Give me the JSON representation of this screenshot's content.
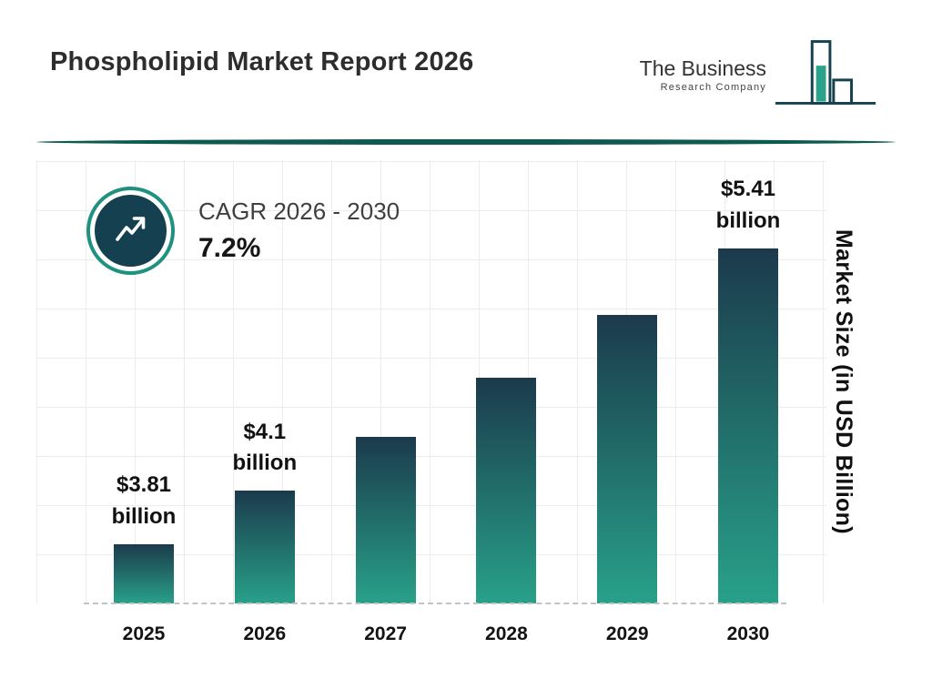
{
  "header": {
    "title": "Phospholipid Market Report 2026",
    "logo": {
      "line1": "The Business",
      "line2": "Research Company"
    }
  },
  "cagr": {
    "label": "CAGR 2026 - 2030",
    "value": "7.2%"
  },
  "icons": {
    "cagr_badge": "trend-up-arrow",
    "company_logo": "bar-chart"
  },
  "chart_data": {
    "type": "bar",
    "title": "Phospholipid Market Report 2026",
    "categories": [
      "2025",
      "2026",
      "2027",
      "2028",
      "2029",
      "2030"
    ],
    "values": [
      3.81,
      4.1,
      4.39,
      4.71,
      5.05,
      5.41
    ],
    "bar_labels": [
      "$3.81\nbillion",
      "$4.1\nbillion",
      "",
      "",
      "",
      "$5.41\nbillion"
    ],
    "xlabel": "",
    "ylabel": "Market Size (in USD Billion)",
    "unit": "USD Billion",
    "grid": true,
    "legend": false,
    "cagr_label": "CAGR 2026 - 2030",
    "cagr_value": "7.2%",
    "colors": {
      "bar_top": "#1b3a4c",
      "bar_bottom": "#28a189",
      "accent_teal": "#1f9180",
      "navy": "#14404f",
      "divider": "#0e5a50"
    }
  }
}
